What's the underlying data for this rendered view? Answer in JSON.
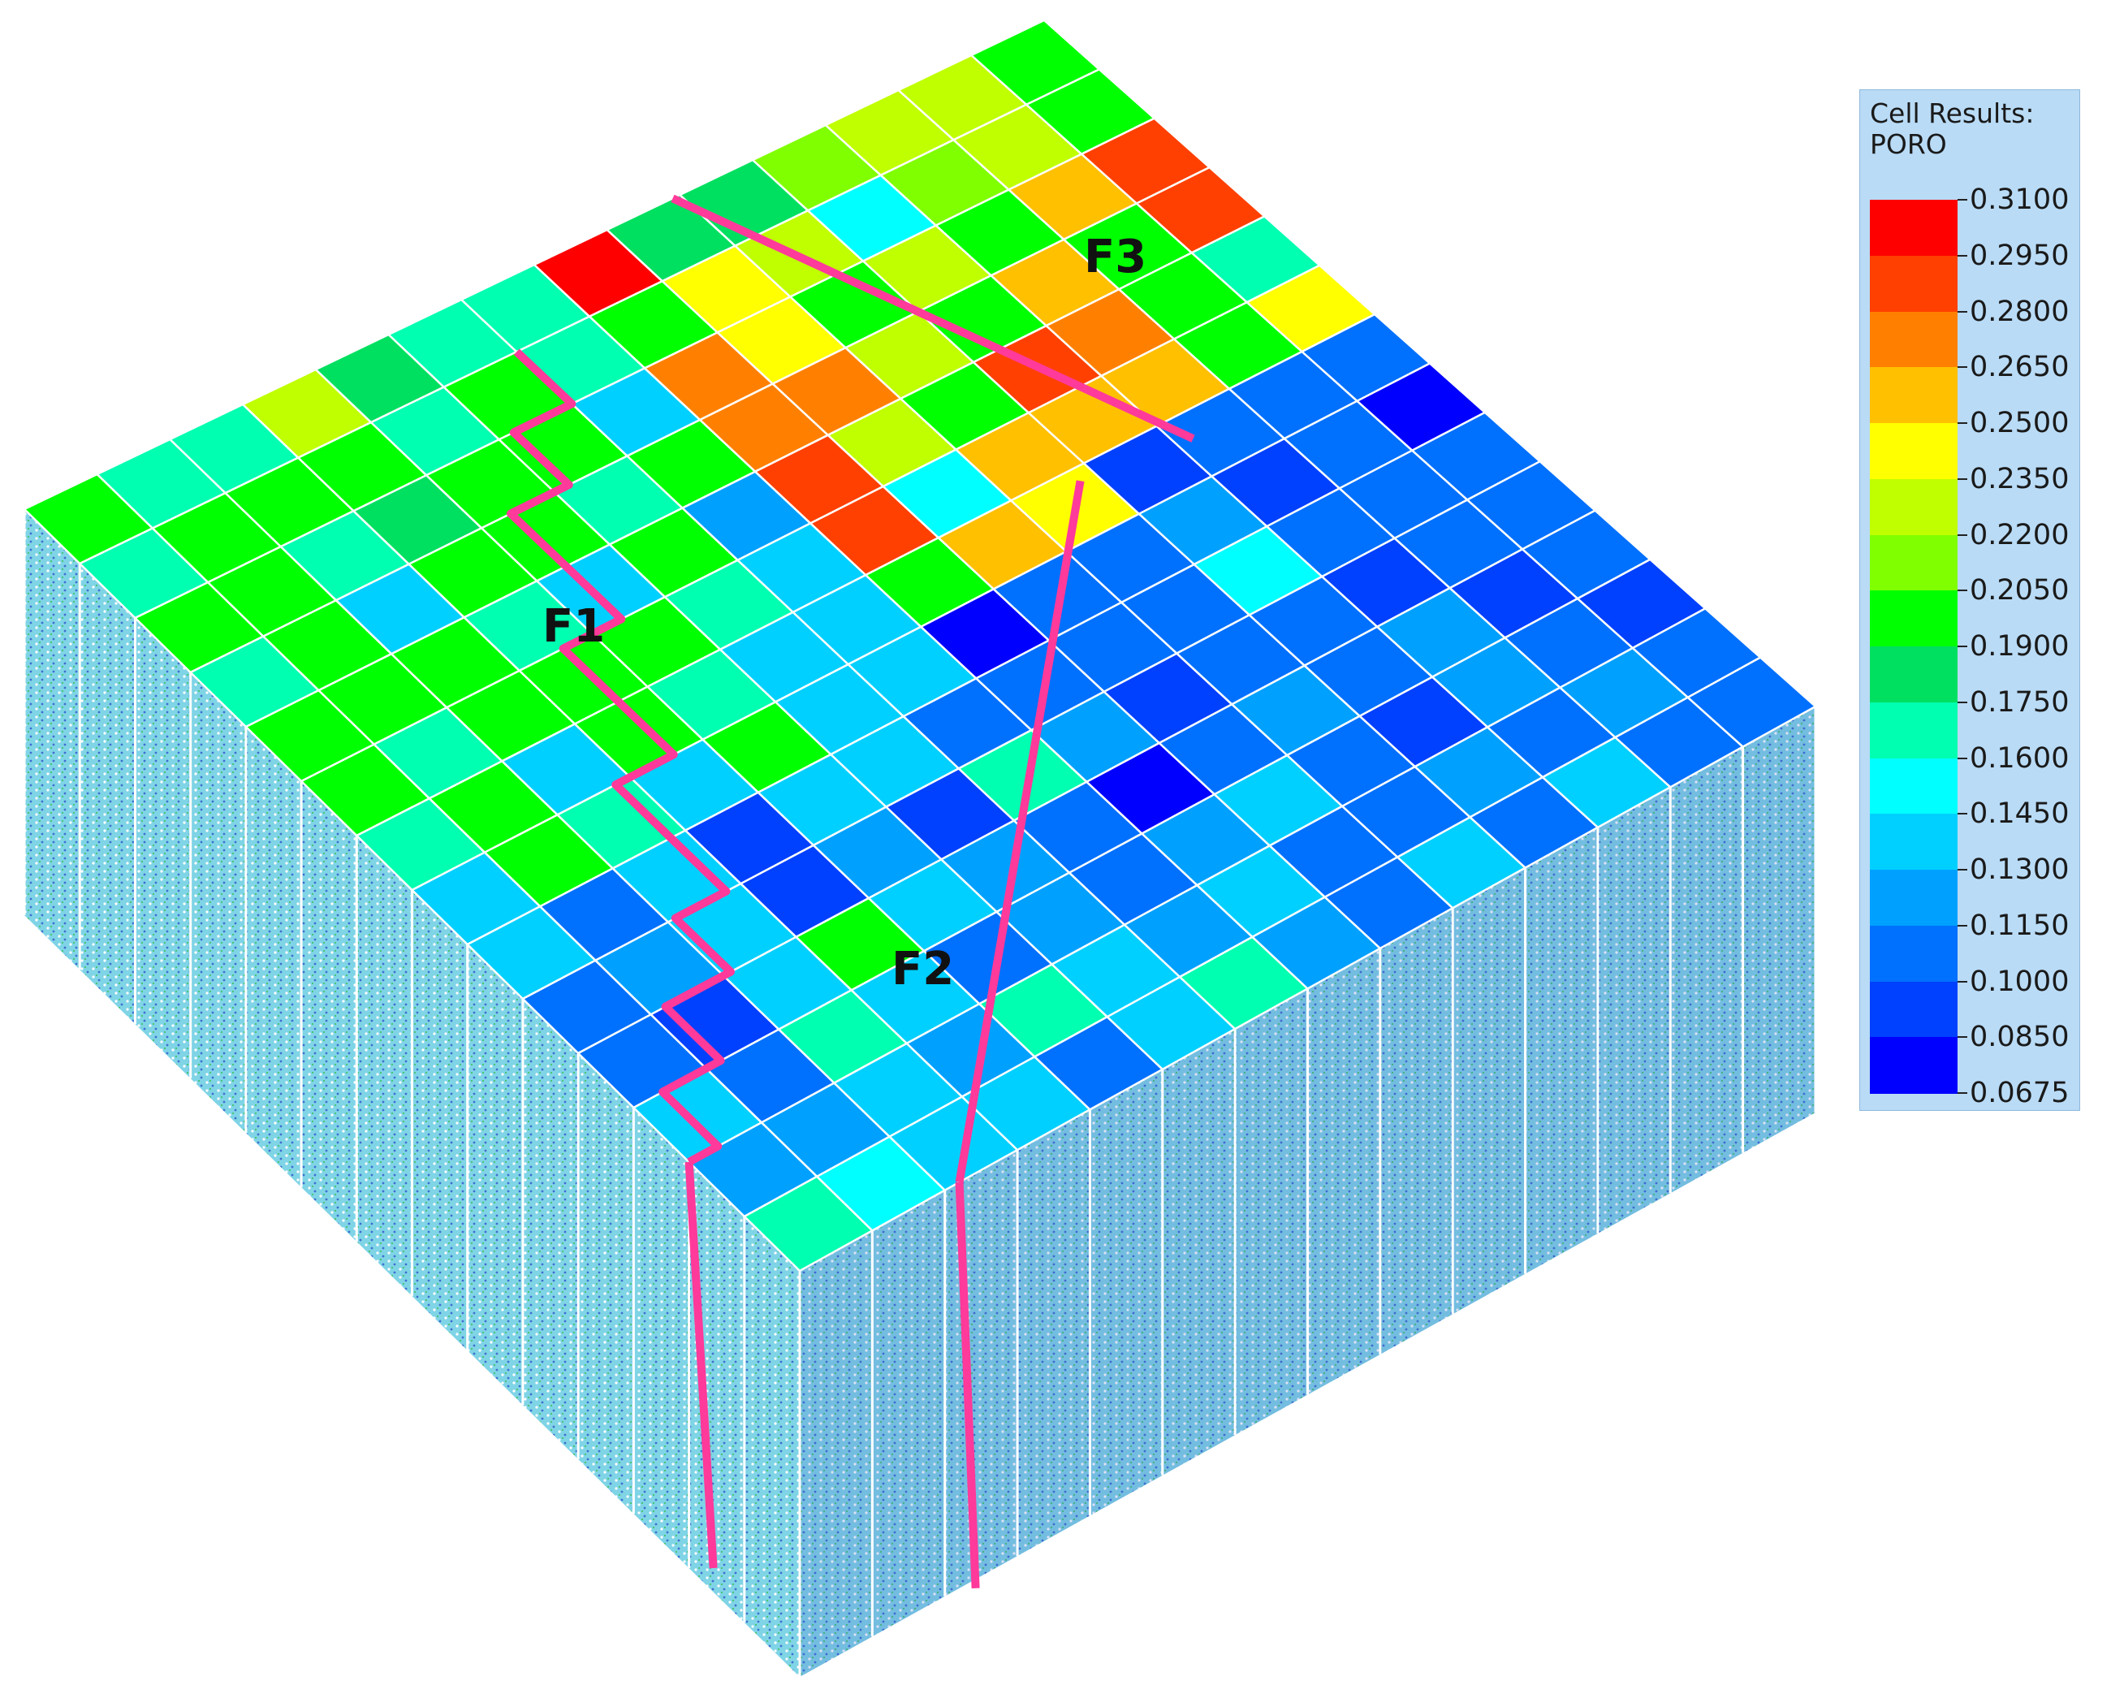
{
  "legend": {
    "title_line1": "Cell Results:",
    "title_line2": "PORO",
    "ticks": [
      "0.3100",
      "0.2950",
      "0.2800",
      "0.2650",
      "0.2500",
      "0.2350",
      "0.2200",
      "0.2050",
      "0.1900",
      "0.1750",
      "0.1600",
      "0.1450",
      "0.1300",
      "0.1150",
      "0.1000",
      "0.0850",
      "0.0675"
    ],
    "colors": [
      "#ff0000",
      "#ff4000",
      "#ff8000",
      "#ffc000",
      "#ffff00",
      "#c0ff00",
      "#80ff00",
      "#00ff00",
      "#00e060",
      "#00ffb0",
      "#00ffff",
      "#00d0ff",
      "#00a0ff",
      "#0070ff",
      "#0040ff",
      "#0000ff"
    ]
  },
  "faults": {
    "f1": "F1",
    "f2": "F2",
    "f3": "F3",
    "color": "#ff3a9a"
  },
  "grid": {
    "rows": 14,
    "cols": 14,
    "poro_values": [
      [
        0.19,
        0.16,
        0.16,
        0.23,
        0.18,
        0.16,
        0.16,
        0.3,
        0.18,
        0.18,
        0.21,
        0.22,
        0.23,
        0.19
      ],
      [
        0.16,
        0.19,
        0.19,
        0.19,
        0.16,
        0.19,
        0.16,
        0.19,
        0.24,
        0.22,
        0.15,
        0.21,
        0.22,
        0.19
      ],
      [
        0.19,
        0.19,
        0.16,
        0.18,
        0.19,
        0.19,
        0.14,
        0.27,
        0.24,
        0.19,
        0.22,
        0.19,
        0.26,
        0.29
      ],
      [
        0.16,
        0.19,
        0.13,
        0.19,
        0.19,
        0.16,
        0.19,
        0.27,
        0.27,
        0.22,
        0.19,
        0.25,
        0.19,
        0.28
      ],
      [
        0.19,
        0.19,
        0.19,
        0.16,
        0.13,
        0.19,
        0.12,
        0.28,
        0.22,
        0.19,
        0.28,
        0.27,
        0.19,
        0.17
      ],
      [
        0.19,
        0.16,
        0.19,
        0.19,
        0.19,
        0.16,
        0.14,
        0.29,
        0.15,
        0.26,
        0.25,
        0.26,
        0.19,
        0.24
      ],
      [
        0.16,
        0.19,
        0.13,
        0.19,
        0.16,
        0.13,
        0.14,
        0.19,
        0.26,
        0.24,
        0.09,
        0.11,
        0.1,
        0.11
      ],
      [
        0.14,
        0.19,
        0.16,
        0.13,
        0.19,
        0.14,
        0.13,
        0.07,
        0.1,
        0.11,
        0.12,
        0.09,
        0.1,
        0.08
      ],
      [
        0.13,
        0.11,
        0.13,
        0.09,
        0.13,
        0.13,
        0.1,
        0.11,
        0.1,
        0.11,
        0.15,
        0.11,
        0.11,
        0.1
      ],
      [
        0.11,
        0.12,
        0.14,
        0.09,
        0.12,
        0.09,
        0.16,
        0.12,
        0.09,
        0.1,
        0.1,
        0.09,
        0.11,
        0.11
      ],
      [
        0.11,
        0.09,
        0.14,
        0.19,
        0.13,
        0.12,
        0.1,
        0.08,
        0.11,
        0.12,
        0.11,
        0.12,
        0.09,
        0.1
      ],
      [
        0.13,
        0.11,
        0.16,
        0.13,
        0.11,
        0.12,
        0.11,
        0.12,
        0.13,
        0.1,
        0.09,
        0.12,
        0.1,
        0.09
      ],
      [
        0.12,
        0.12,
        0.13,
        0.12,
        0.16,
        0.13,
        0.12,
        0.13,
        0.1,
        0.11,
        0.12,
        0.11,
        0.12,
        0.1
      ],
      [
        0.16,
        0.15,
        0.13,
        0.13,
        0.11,
        0.14,
        0.16,
        0.12,
        0.11,
        0.13,
        0.11,
        0.13,
        0.11,
        0.1
      ]
    ]
  }
}
